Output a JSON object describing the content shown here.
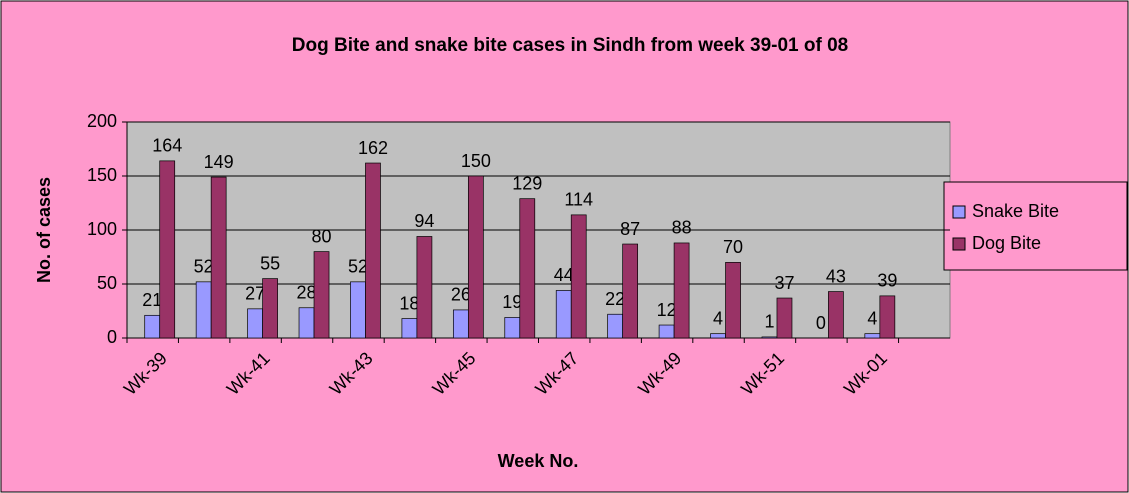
{
  "chart_data": {
    "type": "bar",
    "title": "Dog Bite and snake bite cases in Sindh from week 39-01 of 08",
    "x_label": "Week No.",
    "y_label": "No. of cases",
    "categories": [
      "Wk-39",
      null,
      "Wk-41",
      null,
      "Wk-43",
      null,
      "Wk-45",
      null,
      "Wk-47",
      null,
      "Wk-49",
      null,
      "Wk-51",
      null,
      "Wk-01",
      null
    ],
    "series": [
      {
        "name": "Snake Bite",
        "color": "#9999ff",
        "values": [
          21,
          52,
          27,
          28,
          52,
          18,
          26,
          19,
          44,
          22,
          12,
          4,
          1,
          0,
          4,
          null
        ]
      },
      {
        "name": "Dog Bite",
        "color": "#993366",
        "values": [
          164,
          149,
          55,
          80,
          162,
          94,
          150,
          129,
          114,
          87,
          88,
          70,
          37,
          43,
          39,
          null
        ]
      }
    ],
    "ylim": [
      0,
      200
    ],
    "yticks": [
      0,
      50,
      100,
      150,
      200
    ],
    "grid": true,
    "legend": "right"
  }
}
